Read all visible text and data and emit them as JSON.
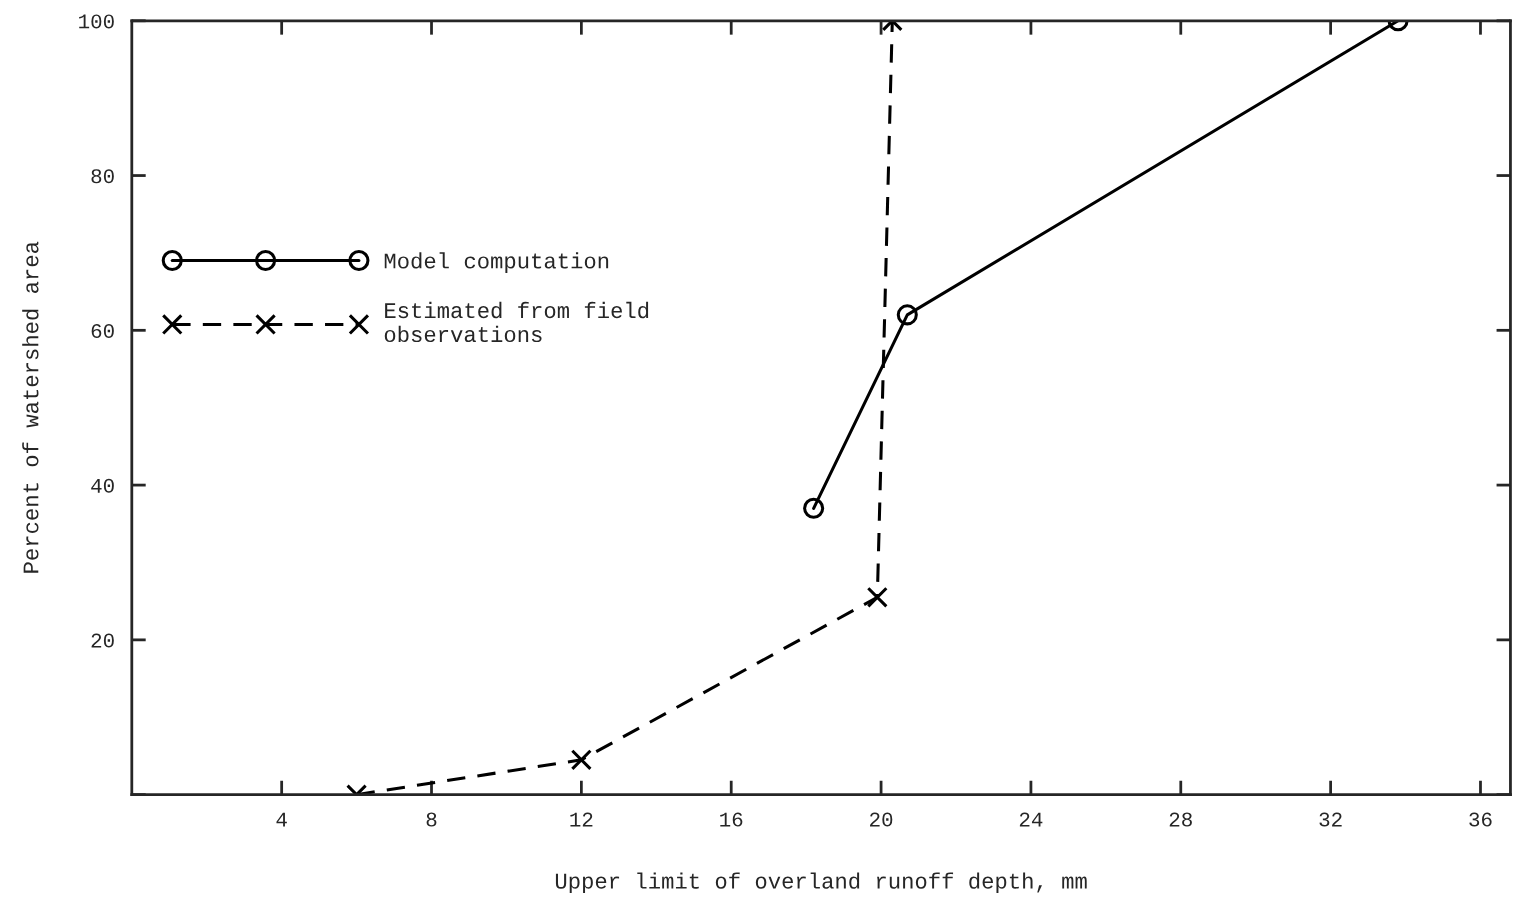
{
  "chart_data": {
    "type": "line",
    "xlabel": "Upper limit of overland runoff depth, mm",
    "ylabel": "Percent of watershed area",
    "xlim": [
      0,
      36.8
    ],
    "ylim": [
      0,
      100
    ],
    "xticks": [
      4,
      8,
      12,
      16,
      20,
      24,
      28,
      32,
      36
    ],
    "yticks": [
      {
        "value": 0,
        "label": null
      },
      20,
      40,
      60,
      80,
      100
    ],
    "grid": false,
    "legend": "left",
    "series": [
      {
        "name": "Model computation",
        "color": "#000000",
        "marker": "circle",
        "line_style": "solid",
        "x": [
          18.2,
          20.7,
          33.8
        ],
        "values": [
          37,
          62,
          100
        ]
      },
      {
        "name": "Estimated from field\nobservations",
        "color": "#000000",
        "marker": "cross",
        "line_style": "dashed",
        "x": [
          6,
          12,
          19.9,
          20.3
        ],
        "values": [
          0,
          4.5,
          25.5,
          100
        ]
      }
    ]
  }
}
